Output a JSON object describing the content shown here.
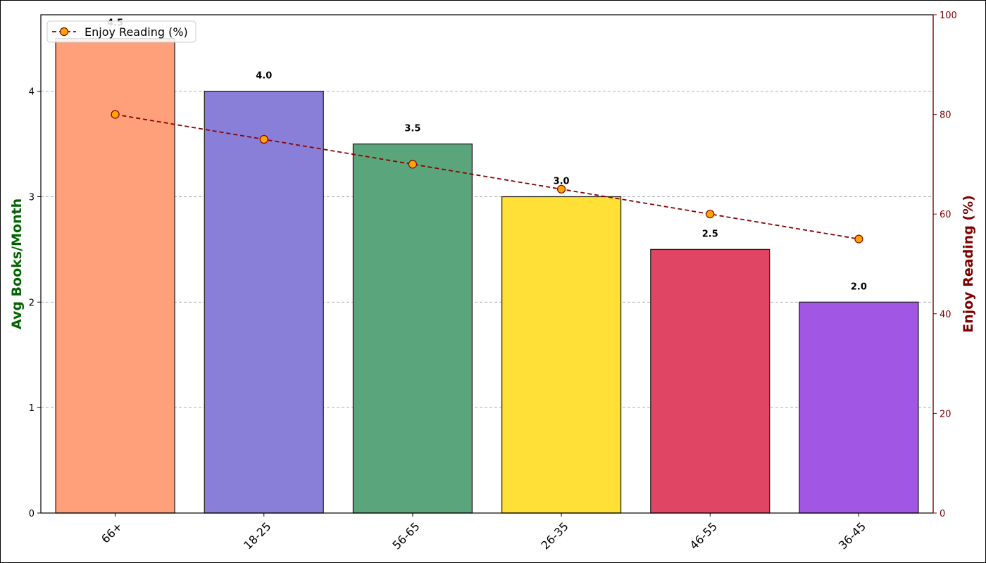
{
  "chart_data": {
    "type": "bar",
    "categories": [
      "66+",
      "18-25",
      "56-65",
      "26-35",
      "46-55",
      "36-45"
    ],
    "series": [
      {
        "name": "",
        "type": "bar",
        "axis": "left",
        "values": [
          4.5,
          4.0,
          3.5,
          3.0,
          2.5,
          2.0
        ],
        "value_labels": [
          "4.5",
          "4.0",
          "3.5",
          "3.0",
          "2.5",
          "2.0"
        ],
        "colors": [
          "#FFA07A",
          "#8A7FD8",
          "#5BA57C",
          "#FFE037",
          "#E04563",
          "#A257E4"
        ]
      },
      {
        "name": "Enjoy Reading (%)",
        "type": "line",
        "axis": "right",
        "values": [
          80,
          75,
          70,
          65,
          60,
          55
        ],
        "line_color": "#8B0000",
        "marker_color": "#FFA500",
        "line_style": "dashed"
      }
    ],
    "ylabel": "Avg Books/Month",
    "ylabel_color": "#006400",
    "ylim": [
      0,
      4.725
    ],
    "yticks": [
      "0",
      "1",
      "2",
      "3",
      "4"
    ],
    "ylabel_right": "Enjoy Reading (%)",
    "ylabel_right_color": "#800000",
    "ylim_right": [
      0,
      100
    ],
    "yticks_right": [
      "0",
      "20",
      "40",
      "60",
      "80",
      "100"
    ],
    "grid": true,
    "legend_placement": "top-left"
  }
}
